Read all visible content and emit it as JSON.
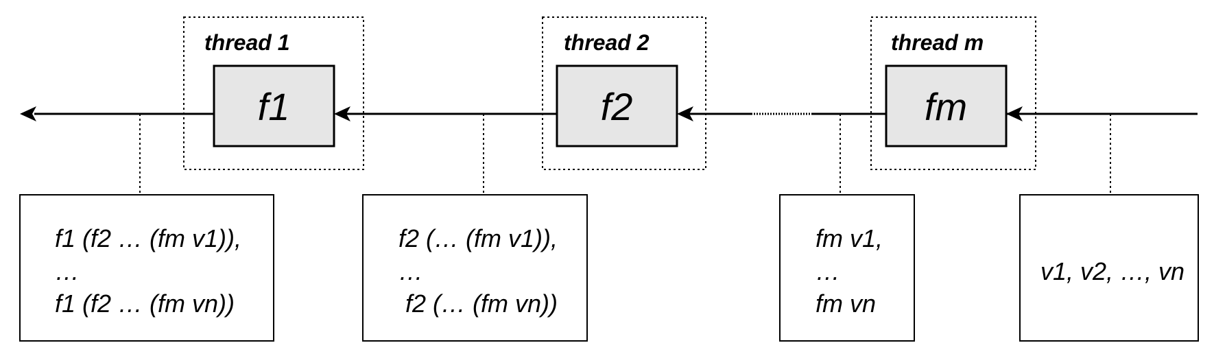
{
  "threads": [
    {
      "title": "thread 1",
      "function": "f1"
    },
    {
      "title": "thread 2",
      "function": "f2"
    },
    {
      "title": "thread m",
      "function": "fm"
    }
  ],
  "value_boxes": [
    {
      "lines": [
        "f1 (f2 … (fm v1)),",
        "…",
        "f1 (f2 … (fm vn))"
      ]
    },
    {
      "lines": [
        "f2 (… (fm v1)),",
        "…",
        " f2 (… (fm vn))"
      ]
    },
    {
      "lines": [
        "fm v1,",
        "…",
        "fm vn"
      ]
    },
    {
      "lines": [
        "v1, v2, …, vn"
      ]
    }
  ]
}
